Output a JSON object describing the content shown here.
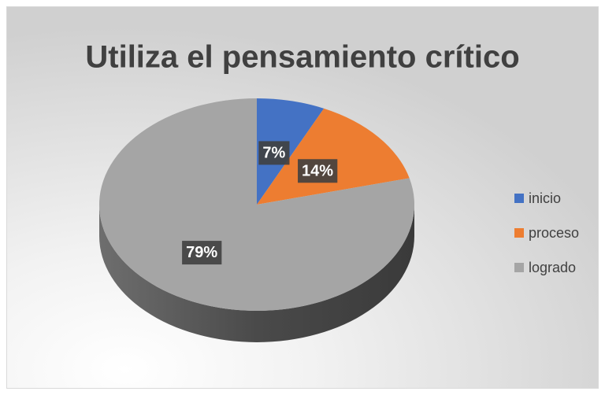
{
  "chart_data": {
    "type": "pie",
    "title": "Utiliza el pensamiento crítico",
    "categories": [
      "inicio",
      "proceso",
      "logrado"
    ],
    "values": [
      7,
      14,
      79
    ],
    "value_labels": [
      "7%",
      "14%",
      "79%"
    ],
    "colors": [
      "#4472c4",
      "#ed7d31",
      "#a5a5a5"
    ],
    "legend": "right"
  }
}
